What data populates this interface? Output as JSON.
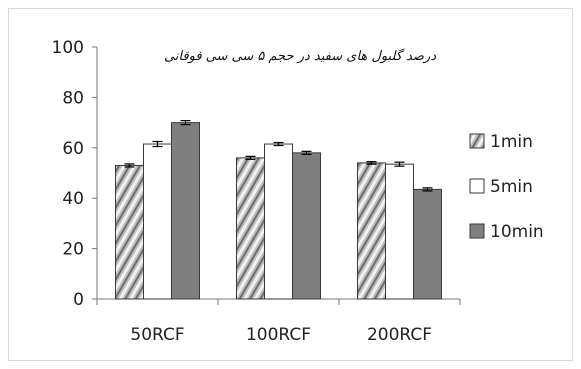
{
  "chart_data": {
    "type": "bar",
    "title": "درصد گلبول های سفید در حجم ۵ سی سی فوقانی",
    "xlabel": "",
    "ylabel": "",
    "ylim": [
      0,
      100
    ],
    "yticks": [
      0,
      20,
      40,
      60,
      80,
      100
    ],
    "grid": false,
    "legend_position": "right",
    "categories": [
      "50RCF",
      "100RCF",
      "200RCF"
    ],
    "series": [
      {
        "name": "1min",
        "values": [
          53,
          56,
          54
        ],
        "error": [
          0.6,
          0.6,
          0.5
        ],
        "color": "#b9b9b9",
        "pattern": "diagonal-stripes"
      },
      {
        "name": "5min",
        "values": [
          61.5,
          61.5,
          53.5
        ],
        "error": [
          1.0,
          0.6,
          0.8
        ],
        "color": "#ffffff",
        "pattern": "none"
      },
      {
        "name": "10min",
        "values": [
          70,
          58,
          43.5
        ],
        "error": [
          0.8,
          0.6,
          0.6
        ],
        "color": "#7f7f7f",
        "pattern": "none"
      }
    ]
  }
}
